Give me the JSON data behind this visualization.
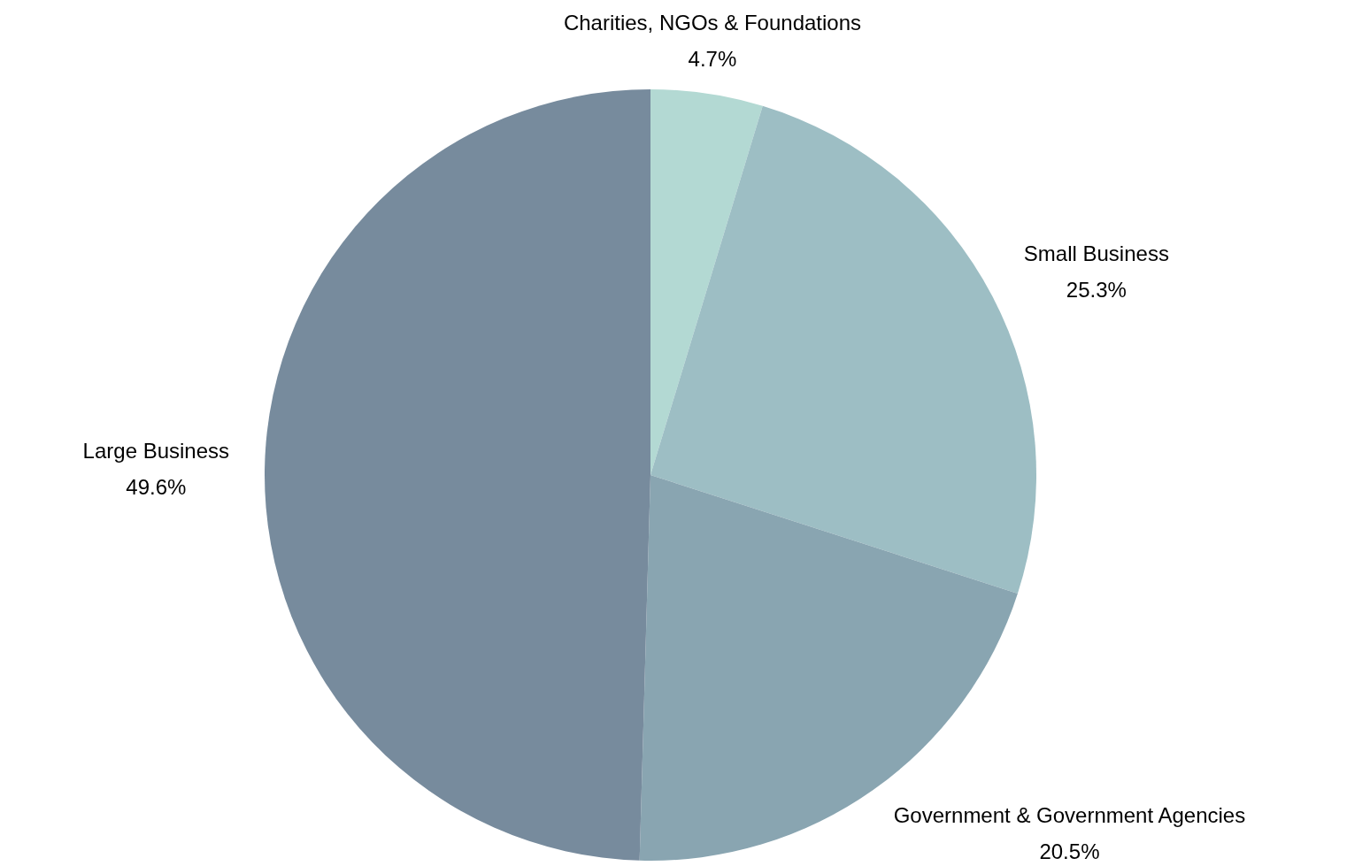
{
  "chart_data": {
    "type": "pie",
    "categories": [
      "Charities, NGOs & Foundations",
      "Small Business",
      "Government & Government Agencies",
      "Large Business"
    ],
    "values": [
      4.7,
      25.3,
      20.5,
      49.6
    ],
    "value_labels": [
      "4.7%",
      "25.3%",
      "20.5%",
      "49.6%"
    ],
    "colors": [
      "#b3d9d3",
      "#9dbec4",
      "#89a5b1",
      "#778b9d"
    ]
  }
}
